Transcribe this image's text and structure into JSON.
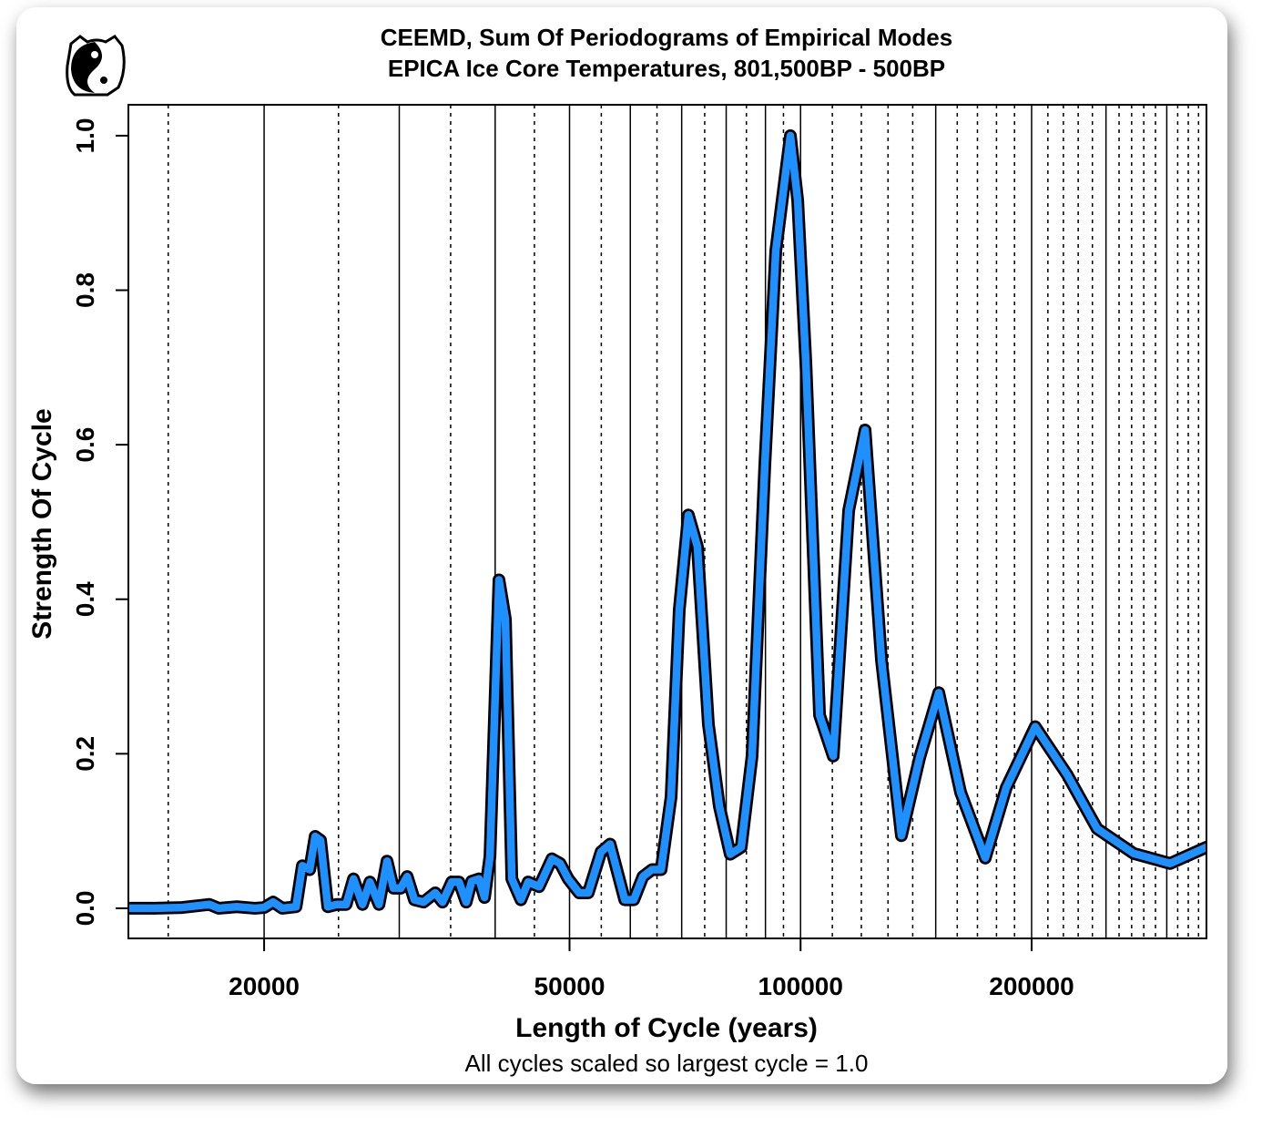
{
  "chart_data": {
    "type": "line",
    "title": "CEEMD, Sum Of Periodograms of Empirical Modes",
    "subtitle": "EPICA Ice Core Temperatures, 801,500BP - 500BP",
    "xlabel": "Length of Cycle (years)",
    "ylabel": "Strength Of Cycle",
    "caption": "All cycles scaled so largest cycle = 1.0",
    "xscale": "log",
    "xlim": [
      13310,
      337940
    ],
    "ylim": [
      -0.039,
      1.04
    ],
    "xticks": [
      20000,
      50000,
      100000,
      200000
    ],
    "yticks": [
      {
        "value": 0,
        "label": "0.0"
      },
      0.2,
      0.4,
      0.6,
      0.8,
      {
        "value": 1,
        "label": "1.0"
      }
    ],
    "x_grid_solid": [
      20000,
      30000,
      40000,
      50000,
      60000,
      70000,
      80000,
      90000,
      100000,
      150000,
      200000,
      250000,
      300000
    ],
    "x_grid_dashed": [
      15000,
      25000,
      35000,
      45000,
      55000,
      65000,
      75000,
      85000,
      95000,
      110000,
      120000,
      130000,
      140000,
      160000,
      170000,
      180000,
      190000,
      210000,
      220000,
      230000,
      240000,
      260000,
      270000,
      280000,
      290000,
      310000,
      320000,
      330000
    ],
    "series": [
      {
        "color": "#1e90ff",
        "x": [
          13310,
          14410,
          15640,
          16970,
          17450,
          18430,
          19460,
          20000,
          20550,
          21120,
          22010,
          22430,
          22930,
          23310,
          23690,
          24210,
          24880,
          25580,
          26150,
          26870,
          27470,
          28230,
          28920,
          29480,
          30130,
          30720,
          31390,
          32270,
          33420,
          34160,
          35110,
          35890,
          36670,
          37280,
          38110,
          38740,
          39380,
          40460,
          41250,
          42050,
          43210,
          44160,
          45630,
          47420,
          48600,
          49810,
          51460,
          52890,
          54950,
          56470,
          59000,
          60630,
          62310,
          64030,
          65810,
          67810,
          69490,
          71420,
          73390,
          75840,
          78370,
          80980,
          83680,
          86460,
          89830,
          92830,
          96990,
          99140,
          101620,
          105860,
          110290,
          115530,
          121350,
          127470,
          135330,
          142940,
          151370,
          161630,
          174030,
          185320,
          202180,
          222480,
          243440,
          271600,
          302980,
          337940
        ],
        "values": [
          0,
          0,
          0.001,
          0.005,
          0,
          0.002,
          0,
          0.001,
          0.008,
          0,
          0.002,
          0.055,
          0.05,
          0.093,
          0.088,
          0.002,
          0.005,
          0.005,
          0.038,
          0.005,
          0.034,
          0.005,
          0.061,
          0.026,
          0.026,
          0.041,
          0.011,
          0.008,
          0.02,
          0.008,
          0.034,
          0.034,
          0.008,
          0.035,
          0.038,
          0.014,
          0.067,
          0.425,
          0.374,
          0.038,
          0.011,
          0.034,
          0.028,
          0.064,
          0.058,
          0.038,
          0.02,
          0.02,
          0.073,
          0.083,
          0.011,
          0.011,
          0.041,
          0.05,
          0.05,
          0.144,
          0.386,
          0.509,
          0.468,
          0.238,
          0.132,
          0.07,
          0.079,
          0.197,
          0.574,
          0.851,
          1.0,
          0.916,
          0.704,
          0.25,
          0.197,
          0.515,
          0.619,
          0.321,
          0.094,
          0.195,
          0.279,
          0.15,
          0.065,
          0.156,
          0.235,
          0.173,
          0.103,
          0.071,
          0.058,
          0.079
        ]
      }
    ]
  }
}
